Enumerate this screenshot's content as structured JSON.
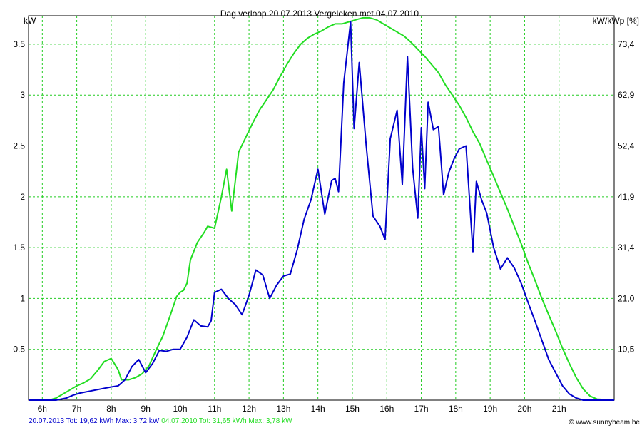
{
  "chart_data": {
    "type": "line",
    "title": "Dag  verloop 20.07.2013   Vergeleken met 04.07.2010",
    "ylabel_left": "kW",
    "ylabel_right": "kW/kWp [%]",
    "x_unit": "hour",
    "xlim": [
      5.6,
      22.6
    ],
    "ylim": [
      0,
      3.78
    ],
    "x_ticks": [
      {
        "value": 6,
        "label": "6h"
      },
      {
        "value": 7,
        "label": "7h"
      },
      {
        "value": 8,
        "label": "8h"
      },
      {
        "value": 9,
        "label": "9h"
      },
      {
        "value": 10,
        "label": "10h"
      },
      {
        "value": 11,
        "label": "11h"
      },
      {
        "value": 12,
        "label": "12h"
      },
      {
        "value": 13,
        "label": "13h"
      },
      {
        "value": 14,
        "label": "14h"
      },
      {
        "value": 15,
        "label": "15h"
      },
      {
        "value": 16,
        "label": "16h"
      },
      {
        "value": 17,
        "label": "17h"
      },
      {
        "value": 18,
        "label": "18h"
      },
      {
        "value": 19,
        "label": "19h"
      },
      {
        "value": 20,
        "label": "20h"
      },
      {
        "value": 21,
        "label": "21h"
      }
    ],
    "y_ticks_left": [
      {
        "value": 0.5,
        "label": "0.5"
      },
      {
        "value": 1,
        "label": "1"
      },
      {
        "value": 1.5,
        "label": "1.5"
      },
      {
        "value": 2,
        "label": "2"
      },
      {
        "value": 2.5,
        "label": "2.5"
      },
      {
        "value": 3,
        "label": "3"
      },
      {
        "value": 3.5,
        "label": "3.5"
      }
    ],
    "y_ticks_right": [
      {
        "value": 0.5,
        "label": "10,5"
      },
      {
        "value": 1,
        "label": "21,0"
      },
      {
        "value": 1.5,
        "label": "31,4"
      },
      {
        "value": 2,
        "label": "41,9"
      },
      {
        "value": 2.5,
        "label": "52,4"
      },
      {
        "value": 3,
        "label": "62,9"
      },
      {
        "value": 3.5,
        "label": "73,4"
      }
    ],
    "grid": true,
    "series": [
      {
        "name": "04.07.2010",
        "color": "#22dd22",
        "x": [
          5.6,
          6.2,
          6.4,
          6.6,
          6.8,
          7.0,
          7.2,
          7.4,
          7.6,
          7.8,
          8.0,
          8.2,
          8.3,
          8.5,
          8.7,
          8.9,
          9.1,
          9.3,
          9.5,
          9.7,
          9.9,
          10.0,
          10.1,
          10.2,
          10.3,
          10.5,
          10.7,
          10.8,
          11.0,
          11.2,
          11.35,
          11.5,
          11.7,
          11.9,
          12.1,
          12.3,
          12.5,
          12.7,
          12.9,
          13.1,
          13.3,
          13.5,
          13.7,
          13.9,
          14.1,
          14.3,
          14.5,
          14.7,
          14.9,
          15.1,
          15.3,
          15.5,
          15.7,
          15.9,
          16.1,
          16.3,
          16.5,
          16.7,
          16.9,
          17.1,
          17.3,
          17.5,
          17.7,
          17.9,
          18.1,
          18.3,
          18.5,
          18.7,
          18.9,
          19.1,
          19.3,
          19.5,
          19.7,
          19.9,
          20.1,
          20.3,
          20.5,
          20.7,
          20.9,
          21.1,
          21.3,
          21.5,
          21.7,
          21.9,
          22.1,
          22.6
        ],
        "y": [
          0,
          0,
          0.02,
          0.06,
          0.1,
          0.14,
          0.17,
          0.21,
          0.29,
          0.38,
          0.41,
          0.3,
          0.2,
          0.2,
          0.22,
          0.26,
          0.34,
          0.49,
          0.63,
          0.82,
          1.02,
          1.06,
          1.08,
          1.15,
          1.38,
          1.55,
          1.65,
          1.71,
          1.69,
          2.0,
          2.27,
          1.86,
          2.44,
          2.58,
          2.72,
          2.85,
          2.95,
          3.05,
          3.18,
          3.3,
          3.41,
          3.5,
          3.56,
          3.6,
          3.63,
          3.67,
          3.7,
          3.7,
          3.72,
          3.74,
          3.76,
          3.76,
          3.74,
          3.7,
          3.66,
          3.62,
          3.58,
          3.52,
          3.45,
          3.38,
          3.3,
          3.22,
          3.1,
          3.0,
          2.9,
          2.78,
          2.64,
          2.52,
          2.36,
          2.2,
          2.04,
          1.88,
          1.71,
          1.54,
          1.35,
          1.18,
          1.0,
          0.84,
          0.68,
          0.51,
          0.36,
          0.22,
          0.11,
          0.04,
          0.01,
          0
        ]
      },
      {
        "name": "20.07.2013",
        "color": "#0000cc",
        "x": [
          5.6,
          6.4,
          6.7,
          6.9,
          7.1,
          7.4,
          7.7,
          8.0,
          8.2,
          8.4,
          8.6,
          8.8,
          9.0,
          9.2,
          9.4,
          9.6,
          9.8,
          10.0,
          10.2,
          10.4,
          10.6,
          10.8,
          10.9,
          11.0,
          11.2,
          11.4,
          11.6,
          11.8,
          12.0,
          12.2,
          12.4,
          12.6,
          12.8,
          13.0,
          13.2,
          13.4,
          13.6,
          13.8,
          13.9,
          14.0,
          14.2,
          14.4,
          14.5,
          14.6,
          14.75,
          14.95,
          15.05,
          15.2,
          15.4,
          15.6,
          15.8,
          15.95,
          16.1,
          16.3,
          16.45,
          16.6,
          16.75,
          16.9,
          17.0,
          17.1,
          17.2,
          17.35,
          17.5,
          17.65,
          17.8,
          17.95,
          18.1,
          18.3,
          18.5,
          18.6,
          18.75,
          18.9,
          19.1,
          19.3,
          19.5,
          19.7,
          19.9,
          20.1,
          20.3,
          20.5,
          20.7,
          20.9,
          21.1,
          21.3,
          21.5,
          21.7,
          22.0,
          22.6
        ],
        "y": [
          0,
          0,
          0.02,
          0.05,
          0.07,
          0.09,
          0.11,
          0.13,
          0.14,
          0.2,
          0.33,
          0.4,
          0.27,
          0.36,
          0.49,
          0.48,
          0.5,
          0.5,
          0.62,
          0.79,
          0.73,
          0.72,
          0.78,
          1.06,
          1.09,
          1.0,
          0.94,
          0.84,
          1.03,
          1.28,
          1.23,
          1.0,
          1.13,
          1.22,
          1.24,
          1.48,
          1.78,
          1.97,
          2.12,
          2.27,
          1.83,
          2.16,
          2.18,
          2.05,
          3.12,
          3.72,
          2.67,
          3.32,
          2.51,
          1.81,
          1.71,
          1.58,
          2.57,
          2.85,
          2.12,
          3.38,
          2.28,
          1.79,
          2.68,
          2.08,
          2.93,
          2.66,
          2.69,
          2.02,
          2.24,
          2.37,
          2.47,
          2.5,
          1.46,
          2.15,
          1.97,
          1.84,
          1.5,
          1.29,
          1.4,
          1.3,
          1.15,
          0.96,
          0.78,
          0.59,
          0.4,
          0.27,
          0.14,
          0.06,
          0.02,
          0,
          0,
          0
        ]
      }
    ]
  },
  "footer": {
    "series1_text": "20.07.2013 Tot: 19,62 kWh Max: 3,72 kW",
    "series1_color": "#0000cc",
    "series2_text": "04.07.2010 Tot: 31,65 kWh Max: 3,78 kW",
    "series2_color": "#22dd22",
    "credit": "© www.sunnybeam.be"
  }
}
